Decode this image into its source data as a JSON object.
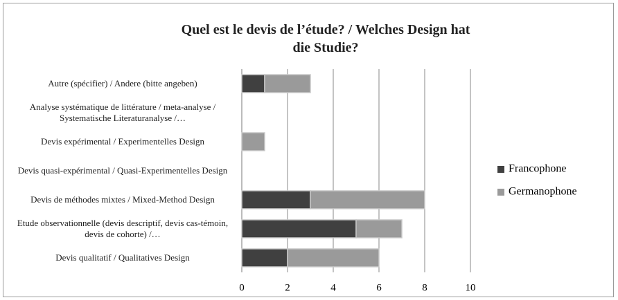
{
  "chart_data": {
    "type": "bar",
    "stacked": true,
    "orientation": "horizontal",
    "title": "Quel est le devis de l’étude? / Welches Design hat die Studie?",
    "categories": [
      "Autre (spécifier) / Andere (bitte angeben)",
      "Analyse systématique de littérature / meta-analyse / Systematische Literaturanalyse /…",
      "Devis expérimental / Experimentelles Design",
      "Devis quasi-expérimental / Quasi-Experimentelles Design",
      "Devis de méthodes mixtes / Mixed-Method Design",
      "Etude observationnelle (devis descriptif, devis cas-témoin, devis de cohorte) /…",
      "Devis qualitatif / Qualitatives Design"
    ],
    "series": [
      {
        "name": "Francophone",
        "color": "#404040",
        "values": [
          1,
          0,
          0,
          0,
          3,
          5,
          2
        ]
      },
      {
        "name": "Germanophone",
        "color": "#9a9a9a",
        "values": [
          2,
          0,
          1,
          0,
          5,
          2,
          4
        ]
      }
    ],
    "xlim": [
      0,
      10
    ],
    "xticks": [
      0,
      2,
      4,
      6,
      8,
      10
    ],
    "grid": true,
    "legend": "right"
  }
}
